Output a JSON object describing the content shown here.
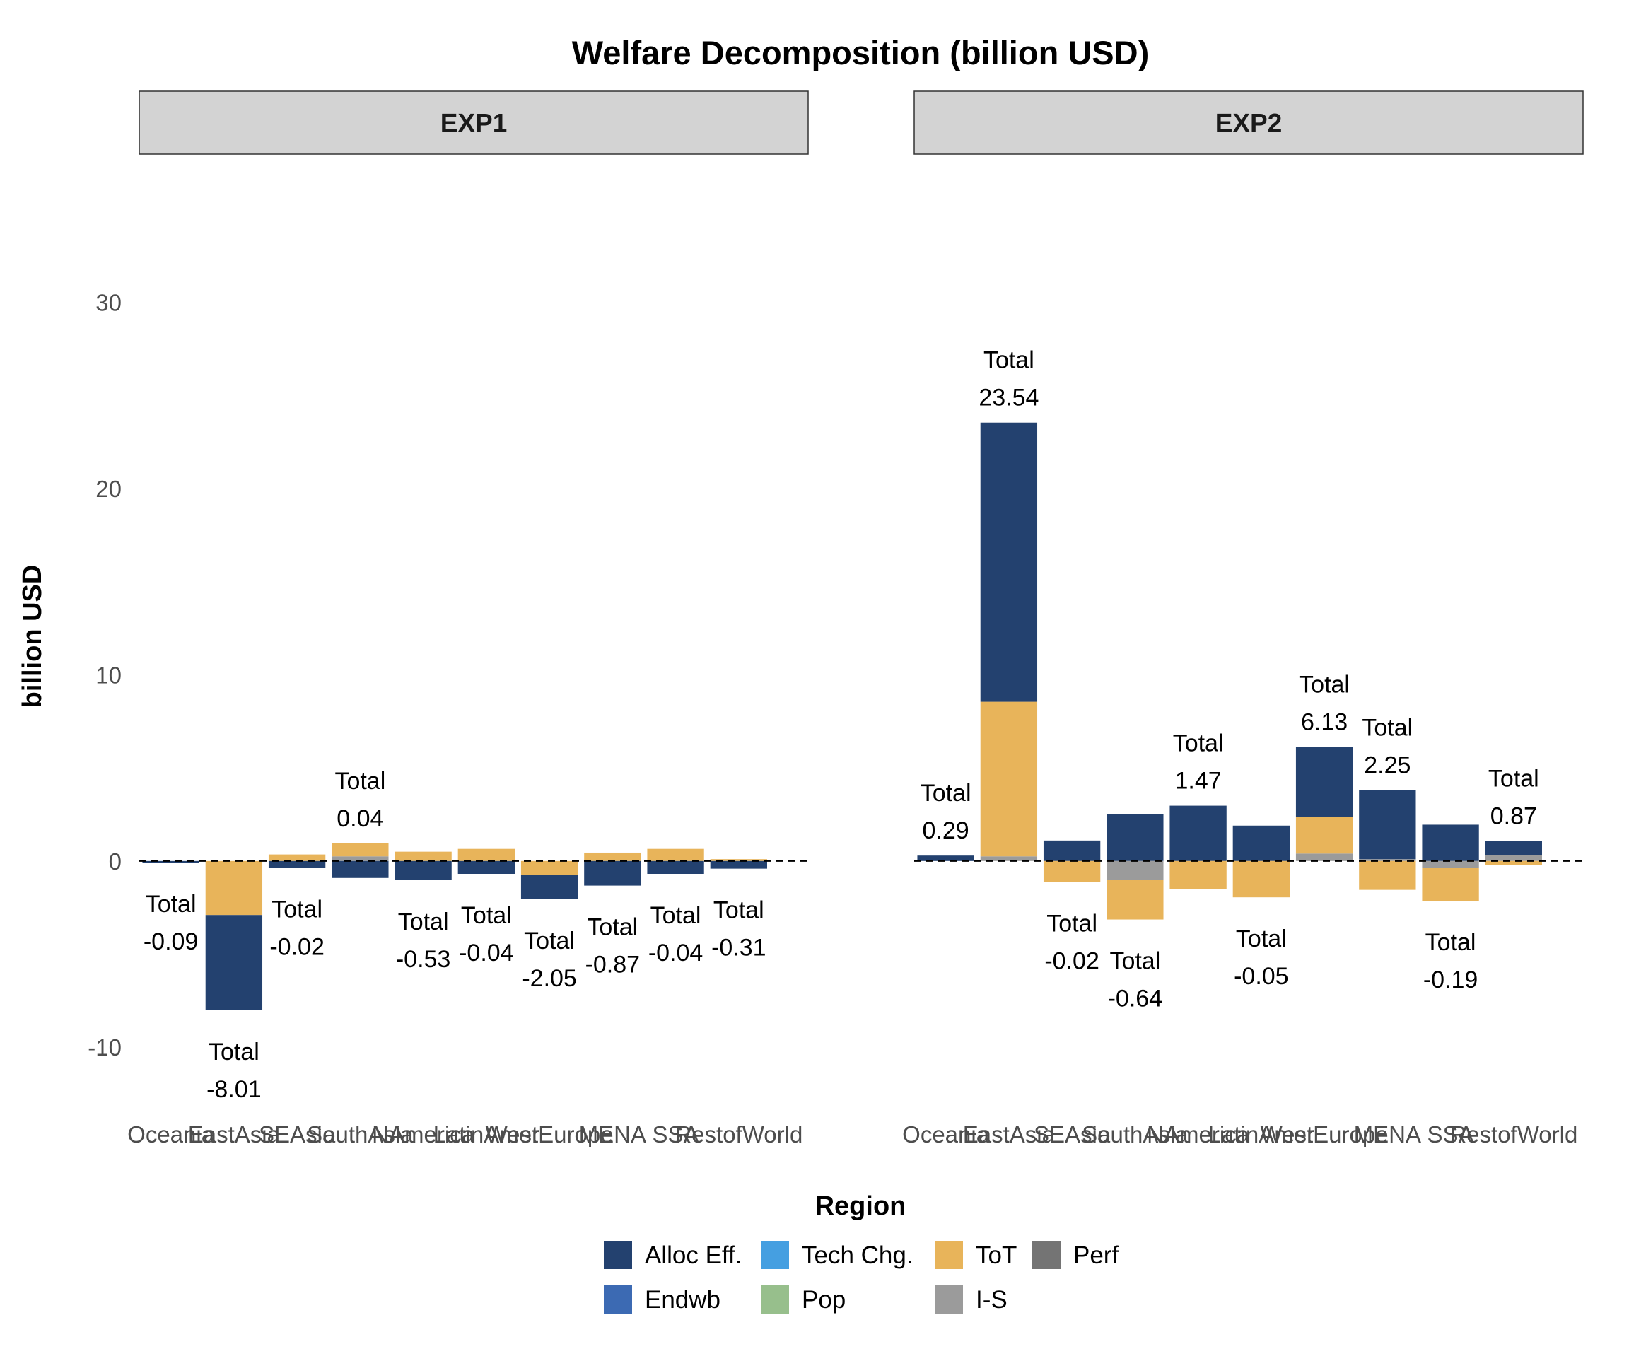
{
  "chart_data": {
    "type": "bar",
    "stacked": true,
    "title": "Welfare Decomposition (billion USD)",
    "xlabel": "Region",
    "ylabel": "billion USD",
    "ylim": [
      -12.8,
      37.5
    ],
    "yticks": [
      -10,
      0,
      10,
      20,
      30
    ],
    "grid": false,
    "legend_position": "bottom",
    "total_prefix": "Total",
    "categories": [
      "Oceania",
      "EastAsia",
      "SEAsia",
      "SouthAsia",
      "NAmerica",
      "LatinAmer",
      "WestEurope",
      "MENA",
      "SSA",
      "RestofWorld"
    ],
    "components": [
      {
        "name": "Alloc Eff.",
        "color": "#23416F"
      },
      {
        "name": "Endwb",
        "color": "#3C6AB3"
      },
      {
        "name": "Tech Chg.",
        "color": "#459FE1"
      },
      {
        "name": "Pop",
        "color": "#97BF8C"
      },
      {
        "name": "ToT",
        "color": "#E8B45A"
      },
      {
        "name": "I-S",
        "color": "#9B9B9B"
      },
      {
        "name": "Perf",
        "color": "#747474"
      }
    ],
    "panels": [
      {
        "name": "EXP1",
        "bars": [
          {
            "category": "Oceania",
            "total": "-0.09",
            "segments": [
              {
                "component": "Alloc Eff.",
                "value": -0.09
              }
            ]
          },
          {
            "category": "EastAsia",
            "total": "-8.01",
            "segments": [
              {
                "component": "ToT",
                "value": -2.9
              },
              {
                "component": "Alloc Eff.",
                "value": -5.11
              }
            ]
          },
          {
            "category": "SEAsia",
            "total": "-0.02",
            "segments": [
              {
                "component": "ToT",
                "value": 0.35
              },
              {
                "component": "Alloc Eff.",
                "value": -0.37
              }
            ]
          },
          {
            "category": "SouthAsia",
            "total": "0.04",
            "segments": [
              {
                "component": "I-S",
                "value": 0.25
              },
              {
                "component": "ToT",
                "value": 0.7
              },
              {
                "component": "Alloc Eff.",
                "value": -0.91
              }
            ]
          },
          {
            "category": "NAmerica",
            "total": "-0.53",
            "segments": [
              {
                "component": "ToT",
                "value": 0.5
              },
              {
                "component": "Alloc Eff.",
                "value": -1.03
              }
            ]
          },
          {
            "category": "LatinAmer",
            "total": "-0.04",
            "segments": [
              {
                "component": "ToT",
                "value": 0.65
              },
              {
                "component": "Alloc Eff.",
                "value": -0.69
              }
            ]
          },
          {
            "category": "WestEurope",
            "total": "-2.05",
            "segments": [
              {
                "component": "ToT",
                "value": -0.75
              },
              {
                "component": "Alloc Eff.",
                "value": -1.3
              }
            ]
          },
          {
            "category": "MENA",
            "total": "-0.87",
            "segments": [
              {
                "component": "ToT",
                "value": 0.45
              },
              {
                "component": "Alloc Eff.",
                "value": -1.32
              }
            ]
          },
          {
            "category": "SSA",
            "total": "-0.04",
            "segments": [
              {
                "component": "ToT",
                "value": 0.65
              },
              {
                "component": "Alloc Eff.",
                "value": -0.69
              }
            ]
          },
          {
            "category": "RestofWorld",
            "total": "-0.31",
            "segments": [
              {
                "component": "ToT",
                "value": 0.1
              },
              {
                "component": "Alloc Eff.",
                "value": -0.41
              }
            ]
          }
        ]
      },
      {
        "name": "EXP2",
        "bars": [
          {
            "category": "Oceania",
            "total": "0.29",
            "segments": [
              {
                "component": "Alloc Eff.",
                "value": 0.29
              }
            ]
          },
          {
            "category": "EastAsia",
            "total": "23.54",
            "segments": [
              {
                "component": "I-S",
                "value": 0.25
              },
              {
                "component": "ToT",
                "value": 8.3
              },
              {
                "component": "Alloc Eff.",
                "value": 14.99
              }
            ]
          },
          {
            "category": "SEAsia",
            "total": "-0.02",
            "segments": [
              {
                "component": "Alloc Eff.",
                "value": 1.1
              },
              {
                "component": "ToT",
                "value": -1.12
              }
            ]
          },
          {
            "category": "SouthAsia",
            "total": "-0.64",
            "segments": [
              {
                "component": "Alloc Eff.",
                "value": 2.5
              },
              {
                "component": "I-S",
                "value": -1.0
              },
              {
                "component": "ToT",
                "value": -2.14
              }
            ]
          },
          {
            "category": "NAmerica",
            "total": "1.47",
            "segments": [
              {
                "component": "Alloc Eff.",
                "value": 2.97
              },
              {
                "component": "ToT",
                "value": -1.5
              }
            ]
          },
          {
            "category": "LatinAmer",
            "total": "-0.05",
            "segments": [
              {
                "component": "Alloc Eff.",
                "value": 1.9
              },
              {
                "component": "ToT",
                "value": -1.95
              }
            ]
          },
          {
            "category": "WestEurope",
            "total": "6.13",
            "segments": [
              {
                "component": "I-S",
                "value": 0.4
              },
              {
                "component": "ToT",
                "value": 1.95
              },
              {
                "component": "Alloc Eff.",
                "value": 3.78
              }
            ]
          },
          {
            "category": "MENA",
            "total": "2.25",
            "segments": [
              {
                "component": "I-S",
                "value": 0.1
              },
              {
                "component": "Alloc Eff.",
                "value": 3.7
              },
              {
                "component": "ToT",
                "value": -1.55
              }
            ]
          },
          {
            "category": "SSA",
            "total": "-0.19",
            "segments": [
              {
                "component": "Alloc Eff.",
                "value": 1.95
              },
              {
                "component": "I-S",
                "value": -0.35
              },
              {
                "component": "ToT",
                "value": -1.79
              }
            ]
          },
          {
            "category": "RestofWorld",
            "total": "0.87",
            "segments": [
              {
                "component": "I-S",
                "value": 0.3
              },
              {
                "component": "Alloc Eff.",
                "value": 0.77
              },
              {
                "component": "ToT",
                "value": -0.2
              }
            ]
          }
        ]
      }
    ],
    "legend": [
      [
        "Alloc Eff.",
        "Tech Chg.",
        "ToT",
        "Perf"
      ],
      [
        "Endwb",
        "Pop",
        "I-S"
      ]
    ]
  }
}
